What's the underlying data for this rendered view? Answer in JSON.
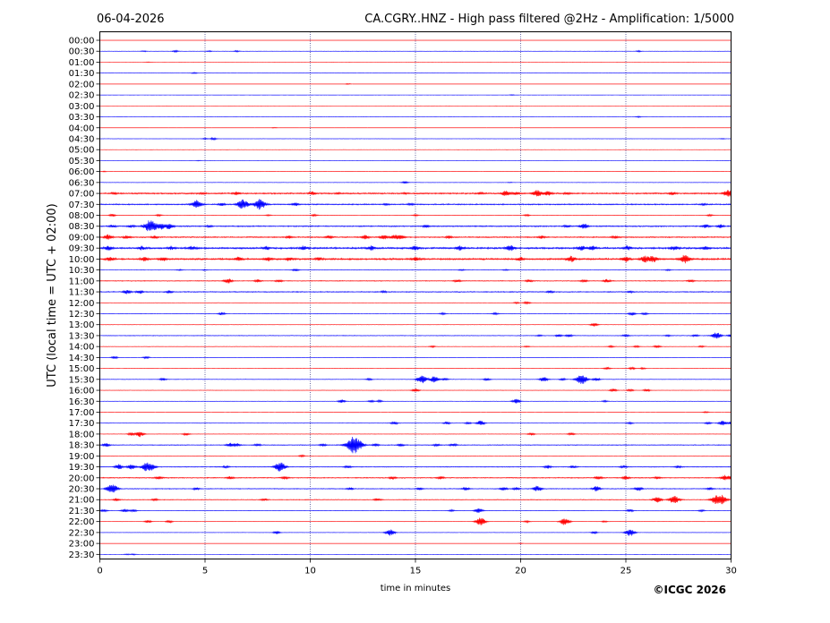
{
  "chart_data": {
    "type": "line",
    "title_left": "06-04-2026",
    "title_right": "CA.CGRY..HNZ - High pass filtered @2Hz - Amplification: 1/5000",
    "xlabel": "time in minutes",
    "ylabel": "UTC (local time = UTC + 02:00)",
    "xlim": [
      0,
      30
    ],
    "x_ticks": [
      0,
      5,
      10,
      15,
      20,
      25,
      30
    ],
    "x_gridlines": [
      5,
      10,
      15,
      20,
      25
    ],
    "row_labels": [
      "00:00",
      "00:30",
      "01:00",
      "01:30",
      "02:00",
      "02:30",
      "03:00",
      "03:30",
      "04:00",
      "04:30",
      "05:00",
      "05:30",
      "06:00",
      "06:30",
      "07:00",
      "07:30",
      "08:00",
      "08:30",
      "09:00",
      "09:30",
      "10:00",
      "10:30",
      "11:00",
      "11:30",
      "12:00",
      "12:30",
      "13:00",
      "13:30",
      "14:00",
      "14:30",
      "15:00",
      "15:30",
      "16:00",
      "16:30",
      "17:00",
      "17:30",
      "18:00",
      "18:30",
      "19:00",
      "19:30",
      "20:00",
      "20:30",
      "21:00",
      "21:30",
      "22:00",
      "22:30",
      "23:00",
      "23:30"
    ],
    "trace_colors": [
      "#ff0000",
      "#0000ff"
    ],
    "traces": [
      {
        "noise": 0.02,
        "events": []
      },
      {
        "noise": 0.04,
        "events": [
          [
            2.1,
            0.12
          ],
          [
            3.6,
            0.2
          ],
          [
            5.2,
            0.12
          ],
          [
            6.5,
            0.15
          ],
          [
            25.6,
            0.15
          ]
        ]
      },
      {
        "noise": 0.02,
        "events": [
          [
            2.3,
            0.08
          ]
        ]
      },
      {
        "noise": 0.03,
        "events": [
          [
            4.5,
            0.15
          ]
        ]
      },
      {
        "noise": 0.02,
        "events": [
          [
            11.8,
            0.12
          ]
        ]
      },
      {
        "noise": 0.02,
        "events": [
          [
            19.6,
            0.1
          ]
        ]
      },
      {
        "noise": 0.02,
        "events": []
      },
      {
        "noise": 0.02,
        "events": [
          [
            25.6,
            0.15
          ]
        ]
      },
      {
        "noise": 0.02,
        "events": [
          [
            8.3,
            0.1
          ]
        ]
      },
      {
        "noise": 0.03,
        "events": [
          [
            5.0,
            0.15
          ],
          [
            5.4,
            0.3
          ],
          [
            29.6,
            0.1
          ]
        ]
      },
      {
        "noise": 0.02,
        "events": []
      },
      {
        "noise": 0.02,
        "events": [
          [
            4.7,
            0.08
          ]
        ]
      },
      {
        "noise": 0.03,
        "events": [
          [
            0.2,
            0.1
          ]
        ]
      },
      {
        "noise": 0.04,
        "events": [
          [
            14.5,
            0.25
          ],
          [
            19.5,
            0.08
          ]
        ]
      },
      {
        "noise": 0.18,
        "events": [
          [
            0.7,
            0.2
          ],
          [
            4.9,
            0.2
          ],
          [
            6.5,
            0.35
          ],
          [
            10.1,
            0.35
          ],
          [
            11.3,
            0.15
          ],
          [
            14.5,
            0.15
          ],
          [
            18.1,
            0.2
          ],
          [
            19.3,
            0.65
          ],
          [
            19.8,
            0.3
          ],
          [
            20.8,
            0.8
          ],
          [
            21.3,
            0.5
          ],
          [
            22.2,
            0.25
          ],
          [
            27.2,
            0.3
          ],
          [
            29.8,
            0.55
          ],
          [
            30.0,
            0.6
          ]
        ]
      },
      {
        "noise": 0.15,
        "events": [
          [
            4.6,
            1.0
          ],
          [
            5.8,
            0.35
          ],
          [
            6.8,
            1.2
          ],
          [
            7.6,
            1.3
          ],
          [
            9.3,
            0.4
          ],
          [
            13.6,
            0.2
          ],
          [
            14.8,
            0.2
          ],
          [
            28.7,
            0.2
          ]
        ]
      },
      {
        "noise": 0.05,
        "events": [
          [
            0.6,
            0.3
          ],
          [
            2.8,
            0.2
          ],
          [
            8.0,
            0.15
          ],
          [
            10.2,
            0.2
          ],
          [
            15.0,
            0.2
          ],
          [
            20.3,
            0.2
          ],
          [
            29.0,
            0.2
          ]
        ]
      },
      {
        "noise": 0.15,
        "events": [
          [
            0.6,
            0.3
          ],
          [
            1.5,
            0.3
          ],
          [
            2.4,
            1.5
          ],
          [
            2.9,
            0.7
          ],
          [
            3.3,
            0.7
          ],
          [
            5.2,
            0.2
          ],
          [
            15.5,
            0.3
          ],
          [
            22.2,
            0.3
          ],
          [
            23.0,
            0.6
          ],
          [
            28.8,
            0.4
          ],
          [
            29.5,
            0.4
          ]
        ]
      },
      {
        "noise": 0.15,
        "events": [
          [
            0.4,
            0.6
          ],
          [
            1.3,
            0.4
          ],
          [
            2.6,
            0.3
          ],
          [
            9.0,
            0.3
          ],
          [
            10.9,
            0.4
          ],
          [
            12.6,
            0.45
          ],
          [
            13.5,
            0.5
          ],
          [
            14.0,
            0.5
          ],
          [
            14.3,
            0.5
          ],
          [
            16.6,
            0.3
          ],
          [
            21.0,
            0.3
          ],
          [
            24.5,
            0.3
          ]
        ]
      },
      {
        "noise": 0.22,
        "events": [
          [
            0.4,
            0.5
          ],
          [
            2.0,
            0.4
          ],
          [
            3.4,
            0.4
          ],
          [
            4.4,
            0.4
          ],
          [
            7.9,
            0.4
          ],
          [
            9.7,
            0.45
          ],
          [
            12.9,
            0.5
          ],
          [
            15.0,
            0.5
          ],
          [
            17.1,
            0.5
          ],
          [
            19.5,
            0.7
          ],
          [
            22.9,
            0.5
          ],
          [
            23.4,
            0.5
          ],
          [
            25.1,
            0.45
          ],
          [
            27.3,
            0.45
          ],
          [
            28.8,
            0.4
          ]
        ]
      },
      {
        "noise": 0.22,
        "events": [
          [
            0.5,
            0.5
          ],
          [
            2.1,
            0.4
          ],
          [
            3.0,
            0.4
          ],
          [
            6.6,
            0.4
          ],
          [
            8.0,
            0.4
          ],
          [
            9.0,
            0.4
          ],
          [
            10.4,
            0.35
          ],
          [
            15.0,
            0.4
          ],
          [
            20.0,
            0.4
          ],
          [
            22.4,
            0.7
          ],
          [
            25.0,
            0.6
          ],
          [
            25.9,
            0.7
          ],
          [
            26.3,
            0.7
          ],
          [
            27.8,
            1.0
          ]
        ]
      },
      {
        "noise": 0.06,
        "events": [
          [
            3.8,
            0.15
          ],
          [
            5.0,
            0.12
          ],
          [
            9.3,
            0.3
          ],
          [
            17.2,
            0.15
          ],
          [
            19.3,
            0.15
          ],
          [
            27.0,
            0.15
          ]
        ]
      },
      {
        "noise": 0.1,
        "events": [
          [
            6.1,
            0.6
          ],
          [
            7.5,
            0.35
          ],
          [
            8.5,
            0.3
          ],
          [
            17.0,
            0.3
          ],
          [
            20.4,
            0.3
          ],
          [
            23.0,
            0.3
          ],
          [
            24.1,
            0.4
          ],
          [
            28.1,
            0.3
          ]
        ]
      },
      {
        "noise": 0.12,
        "events": [
          [
            1.3,
            0.5
          ],
          [
            1.9,
            0.4
          ],
          [
            3.3,
            0.3
          ],
          [
            13.5,
            0.2
          ],
          [
            21.4,
            0.3
          ],
          [
            25.2,
            0.2
          ]
        ]
      },
      {
        "noise": 0.04,
        "events": [
          [
            19.8,
            0.2
          ],
          [
            20.3,
            0.3
          ]
        ]
      },
      {
        "noise": 0.06,
        "events": [
          [
            5.8,
            0.35
          ],
          [
            16.3,
            0.2
          ],
          [
            18.8,
            0.25
          ],
          [
            25.3,
            0.4
          ],
          [
            25.9,
            0.25
          ]
        ]
      },
      {
        "noise": 0.03,
        "events": [
          [
            23.5,
            0.45
          ]
        ]
      },
      {
        "noise": 0.08,
        "events": [
          [
            20.9,
            0.15
          ],
          [
            21.8,
            0.3
          ],
          [
            22.3,
            0.3
          ],
          [
            25.0,
            0.25
          ],
          [
            27.0,
            0.2
          ],
          [
            28.3,
            0.25
          ],
          [
            29.3,
            0.8
          ],
          [
            30.0,
            0.4
          ]
        ]
      },
      {
        "noise": 0.05,
        "events": [
          [
            15.8,
            0.2
          ],
          [
            20.3,
            0.15
          ],
          [
            24.3,
            0.2
          ],
          [
            25.5,
            0.2
          ],
          [
            26.5,
            0.3
          ],
          [
            28.6,
            0.2
          ]
        ]
      },
      {
        "noise": 0.03,
        "events": [
          [
            0.7,
            0.3
          ],
          [
            2.2,
            0.3
          ]
        ]
      },
      {
        "noise": 0.04,
        "events": [
          [
            24.1,
            0.3
          ],
          [
            25.3,
            0.3
          ],
          [
            25.8,
            0.2
          ]
        ]
      },
      {
        "noise": 0.06,
        "events": [
          [
            3.0,
            0.3
          ],
          [
            12.8,
            0.2
          ],
          [
            15.3,
            1.0
          ],
          [
            15.9,
            0.8
          ],
          [
            16.4,
            0.3
          ],
          [
            18.4,
            0.3
          ],
          [
            21.1,
            0.6
          ],
          [
            22.0,
            0.3
          ],
          [
            22.9,
            1.3
          ],
          [
            23.6,
            0.4
          ]
        ]
      },
      {
        "noise": 0.05,
        "events": [
          [
            15.0,
            0.4
          ],
          [
            24.4,
            0.35
          ],
          [
            25.2,
            0.3
          ],
          [
            26.0,
            0.3
          ]
        ]
      },
      {
        "noise": 0.04,
        "events": [
          [
            11.5,
            0.4
          ],
          [
            12.9,
            0.25
          ],
          [
            13.3,
            0.25
          ],
          [
            19.8,
            0.6
          ],
          [
            24.0,
            0.2
          ]
        ]
      },
      {
        "noise": 0.02,
        "events": [
          [
            28.8,
            0.2
          ]
        ]
      },
      {
        "noise": 0.06,
        "events": [
          [
            14.0,
            0.4
          ],
          [
            16.5,
            0.3
          ],
          [
            17.5,
            0.25
          ],
          [
            18.1,
            0.6
          ],
          [
            25.2,
            0.2
          ],
          [
            28.9,
            0.3
          ],
          [
            29.6,
            0.6
          ],
          [
            30.0,
            0.3
          ]
        ]
      },
      {
        "noise": 0.05,
        "events": [
          [
            1.5,
            0.4
          ],
          [
            1.9,
            0.7
          ],
          [
            4.1,
            0.3
          ],
          [
            20.5,
            0.3
          ],
          [
            22.4,
            0.3
          ]
        ]
      },
      {
        "noise": 0.1,
        "events": [
          [
            0.3,
            0.4
          ],
          [
            6.2,
            0.5
          ],
          [
            6.5,
            0.4
          ],
          [
            7.5,
            0.3
          ],
          [
            10.6,
            0.3
          ],
          [
            12.1,
            2.2
          ],
          [
            13.1,
            0.3
          ],
          [
            14.3,
            0.3
          ],
          [
            16.0,
            0.3
          ],
          [
            16.8,
            0.35
          ]
        ]
      },
      {
        "noise": 0.04,
        "events": [
          [
            9.6,
            0.25
          ]
        ]
      },
      {
        "noise": 0.1,
        "events": [
          [
            0.9,
            0.6
          ],
          [
            1.5,
            0.6
          ],
          [
            2.2,
            1.0
          ],
          [
            2.5,
            0.6
          ],
          [
            6.0,
            0.3
          ],
          [
            8.5,
            0.9
          ],
          [
            8.7,
            0.5
          ],
          [
            11.8,
            0.3
          ],
          [
            21.3,
            0.4
          ],
          [
            22.5,
            0.3
          ],
          [
            24.9,
            0.3
          ],
          [
            27.5,
            0.3
          ]
        ]
      },
      {
        "noise": 0.12,
        "events": [
          [
            2.8,
            0.35
          ],
          [
            6.2,
            0.3
          ],
          [
            8.8,
            0.3
          ],
          [
            13.9,
            0.35
          ],
          [
            16.2,
            0.3
          ],
          [
            23.7,
            0.4
          ],
          [
            25.0,
            0.4
          ],
          [
            26.5,
            0.3
          ],
          [
            29.7,
            0.6
          ],
          [
            30.0,
            0.3
          ]
        ]
      },
      {
        "noise": 0.1,
        "events": [
          [
            0.5,
            0.8
          ],
          [
            0.7,
            0.6
          ],
          [
            4.6,
            0.3
          ],
          [
            11.9,
            0.3
          ],
          [
            15.2,
            0.3
          ],
          [
            17.4,
            0.4
          ],
          [
            19.2,
            0.4
          ],
          [
            19.8,
            0.35
          ],
          [
            20.8,
            0.7
          ],
          [
            23.6,
            0.6
          ],
          [
            25.6,
            0.5
          ],
          [
            29.0,
            0.3
          ]
        ]
      },
      {
        "noise": 0.09,
        "events": [
          [
            0.8,
            0.3
          ],
          [
            2.6,
            0.25
          ],
          [
            7.8,
            0.3
          ],
          [
            13.2,
            0.3
          ],
          [
            26.5,
            0.7
          ],
          [
            27.3,
            1.0
          ],
          [
            29.3,
            1.1
          ],
          [
            29.6,
            0.9
          ]
        ]
      },
      {
        "noise": 0.06,
        "events": [
          [
            0.2,
            0.3
          ],
          [
            1.2,
            0.4
          ],
          [
            1.6,
            0.3
          ],
          [
            16.7,
            0.2
          ],
          [
            18.0,
            0.6
          ],
          [
            25.2,
            0.3
          ],
          [
            28.6,
            0.2
          ]
        ]
      },
      {
        "noise": 0.04,
        "events": [
          [
            2.3,
            0.35
          ],
          [
            3.3,
            0.3
          ],
          [
            18.1,
            1.0
          ],
          [
            20.3,
            0.25
          ],
          [
            22.1,
            0.9
          ],
          [
            24.0,
            0.2
          ]
        ]
      },
      {
        "noise": 0.04,
        "events": [
          [
            8.4,
            0.35
          ],
          [
            13.8,
            0.8
          ],
          [
            23.5,
            0.3
          ],
          [
            25.2,
            0.9
          ]
        ]
      },
      {
        "noise": 0.02,
        "events": [
          [
            20.0,
            0.1
          ]
        ]
      },
      {
        "noise": 0.02,
        "events": [
          [
            1.3,
            0.12
          ],
          [
            1.6,
            0.15
          ]
        ]
      }
    ]
  },
  "copyright": "©ICGC 2026"
}
